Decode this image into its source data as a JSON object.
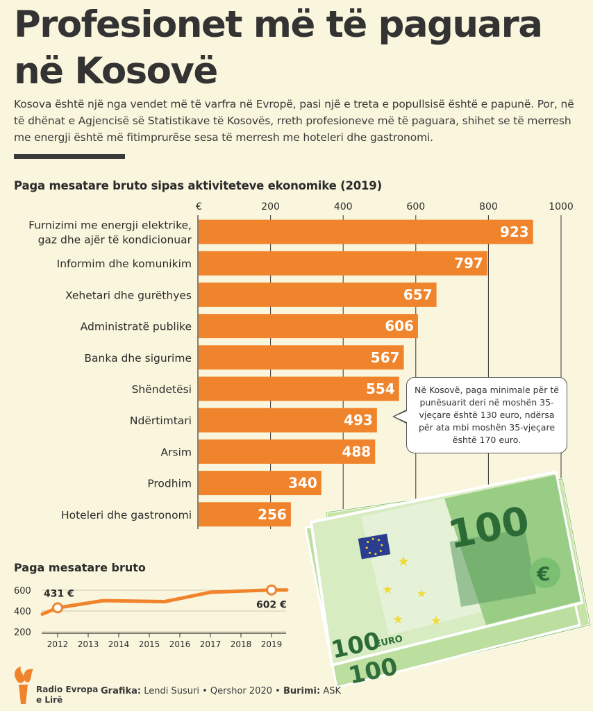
{
  "header": {
    "title": "Profesionet më të paguara në Kosovë",
    "subtitle": "Kosova është një nga vendet më të varfra në Evropë, pasi një e treta e popullsisë është e papunë. Por, në të dhënat e Agjencisë së Statistikave të Kosovës, rreth profesioneve më të paguara, shihet se të merresh me energji është më fitimprurëse sesa të merresh me hoteleri dhe gastronomi."
  },
  "note": {
    "text": "Në Kosovë, paga minimale për të punësuarit deri në moshën 35-vjeçare është 130 euro, ndërsa për ata mbi moshën 35-vjeçare është 170 euro."
  },
  "banknote": {
    "denomination": "100",
    "currency_word": "EURO",
    "currency_symbol": "€"
  },
  "footer": {
    "logo_text_1": "Radio Evropa",
    "logo_text_2": "e Lirë",
    "grafika_label": "Grafika:",
    "grafika_value": "Lendi Susuri • Qershor 2020 •",
    "burimi_label": "Burimi:",
    "burimi_value": "ASK"
  },
  "colors": {
    "bar": "#f0842c",
    "background": "#faf6dd",
    "text": "#2b2b2b",
    "gridline": "#333333"
  },
  "chart_data": [
    {
      "type": "bar",
      "orientation": "horizontal",
      "title": "Paga mesatare bruto sipas aktiviteteve ekonomike (2019)",
      "unit_label": "€",
      "xlim": [
        0,
        1000
      ],
      "ticks": [
        200,
        400,
        600,
        800,
        1000
      ],
      "grid": true,
      "categories": [
        "Furnizimi me energji elektrike,\ngaz dhe ajër të kondicionuar",
        "Informim dhe komunikim",
        "Xehetari dhe gurëthyes",
        "Administratë publike",
        "Banka dhe sigurime",
        "Shëndetësi",
        "Ndërtimtari",
        "Arsim",
        "Prodhim",
        "Hoteleri dhe gastronomi"
      ],
      "values": [
        923,
        797,
        657,
        606,
        567,
        554,
        493,
        488,
        340,
        256
      ]
    },
    {
      "type": "line",
      "title": "Paga mesatare bruto",
      "x": [
        2011.5,
        2012,
        2013.5,
        2015.5,
        2017,
        2019,
        2019.5
      ],
      "y": [
        370,
        431,
        500,
        490,
        580,
        602,
        602
      ],
      "xticks": [
        "2012",
        "2013",
        "2014",
        "2015",
        "2016",
        "2017",
        "2018",
        "2019"
      ],
      "yticks": [
        200,
        400,
        600
      ],
      "ylim": [
        200,
        650
      ],
      "annotations": [
        {
          "x": 2012,
          "y": 431,
          "label": "431 €"
        },
        {
          "x": 2019,
          "y": 602,
          "label": "602 €"
        }
      ]
    }
  ]
}
